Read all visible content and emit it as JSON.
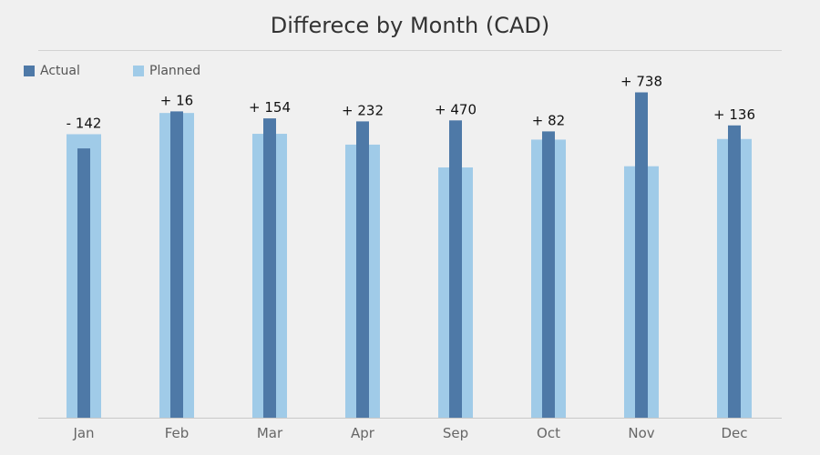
{
  "chart_data": {
    "type": "bar",
    "title": "Differece by Month (CAD)",
    "categories": [
      "Jan",
      "Feb",
      "Mar",
      "Apr",
      "Sep",
      "Oct",
      "Nov",
      "Dec"
    ],
    "series": [
      {
        "name": "Actual",
        "color": "#4e79a7",
        "values": [
          2690,
          3060,
          2990,
          2960,
          2970,
          2860,
          3250,
          2920
        ]
      },
      {
        "name": "Planned",
        "color": "#a0cbe8",
        "values": [
          2832,
          3044,
          2836,
          2728,
          2500,
          2778,
          2512,
          2784
        ]
      }
    ],
    "data_labels": [
      "- 142",
      "+ 16",
      "+ 154",
      "+ 232",
      "+ 470",
      "+ 82",
      "+ 738",
      "+ 136"
    ],
    "ylim": [
      0,
      3500
    ],
    "grid": false,
    "legend_position": "top-left"
  }
}
